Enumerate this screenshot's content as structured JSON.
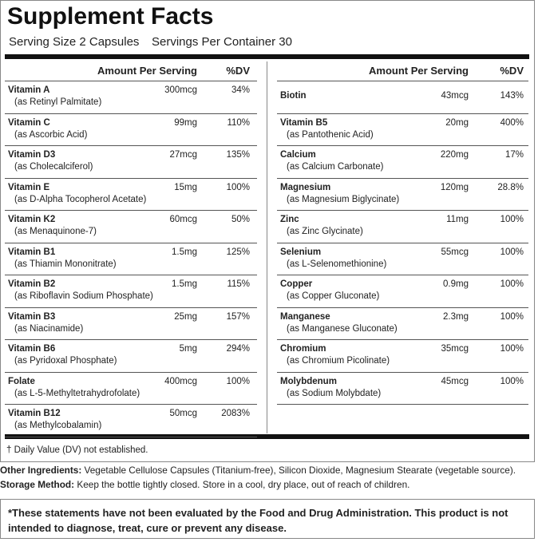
{
  "title": "Supplement Facts",
  "serving_size": "Serving Size 2 Capsules",
  "servings_per_container": "Servings Per Container 30",
  "table": {
    "headers": {
      "amount": "Amount Per Serving",
      "dv": "%DV"
    },
    "left": [
      {
        "name": "Vitamin A",
        "source": "(as Retinyl Palmitate)",
        "amount": "300mcg",
        "dv": "34%"
      },
      {
        "name": "Vitamin C",
        "source": "(as Ascorbic Acid)",
        "amount": "99mg",
        "dv": "110%"
      },
      {
        "name": "Vitamin D3",
        "source": "(as Cholecalciferol)",
        "amount": "27mcg",
        "dv": "135%"
      },
      {
        "name": "Vitamin E",
        "source": "(as D-Alpha Tocopherol Acetate)",
        "amount": "15mg",
        "dv": "100%"
      },
      {
        "name": "Vitamin K2",
        "source": "(as Menaquinone-7)",
        "amount": "60mcg",
        "dv": "50%"
      },
      {
        "name": "Vitamin B1",
        "source": "(as Thiamin Mononitrate)",
        "amount": "1.5mg",
        "dv": "125%"
      },
      {
        "name": "Vitamin B2",
        "source": "(as Riboflavin Sodium Phosphate)",
        "amount": "1.5mg",
        "dv": "115%"
      },
      {
        "name": "Vitamin B3",
        "source": "(as Niacinamide)",
        "amount": "25mg",
        "dv": "157%"
      },
      {
        "name": "Vitamin B6",
        "source": "(as Pyridoxal Phosphate)",
        "amount": "5mg",
        "dv": "294%"
      },
      {
        "name": "Folate",
        "source": "(as L-5-Methyltetrahydrofolate)",
        "amount": "400mcg",
        "dv": "100%"
      },
      {
        "name": "Vitamin B12",
        "source": "(as Methylcobalamin)",
        "amount": "50mcg",
        "dv": "2083%"
      }
    ],
    "right": [
      {
        "name": "Biotin",
        "amount": "43mcg",
        "dv": "143%"
      },
      {
        "name": "Vitamin B5",
        "source": "(as Pantothenic Acid)",
        "amount": "20mg",
        "dv": "400%"
      },
      {
        "name": "Calcium",
        "source": "(as Calcium Carbonate)",
        "amount": "220mg",
        "dv": "17%"
      },
      {
        "name": "Magnesium",
        "source": "(as Magnesium Biglycinate)",
        "amount": "120mg",
        "dv": "28.8%"
      },
      {
        "name": "Zinc",
        "source": "(as Zinc Glycinate)",
        "amount": "11mg",
        "dv": "100%"
      },
      {
        "name": "Selenium",
        "source": "(as L-Selenomethionine)",
        "amount": "55mcg",
        "dv": "100%"
      },
      {
        "name": "Copper",
        "source": "(as Copper Gluconate)",
        "amount": "0.9mg",
        "dv": "100%"
      },
      {
        "name": "Manganese",
        "source": "(as Manganese Gluconate)",
        "amount": "2.3mg",
        "dv": "100%"
      },
      {
        "name": "Chromium",
        "source": "(as Chromium Picolinate)",
        "amount": "35mcg",
        "dv": "100%"
      },
      {
        "name": "Molybdenum",
        "source": "(as Sodium Molybdate)",
        "amount": "45mcg",
        "dv": "100%"
      }
    ]
  },
  "footnote": "† Daily Value (DV) not established.",
  "other_ingredients": {
    "label": "Other Ingredients:",
    "text": "Vegetable Cellulose Capsules (Titanium-free), Silicon Dioxide, Magnesium Stearate (vegetable source)."
  },
  "storage": {
    "label": "Storage Method:",
    "text": "Keep the bottle tightly closed. Store in a cool, dry place, out of reach of children."
  },
  "disclaimer": "*These statements have not been evaluated by the Food and Drug Administration. This product is not intended to diagnose, treat, cure or prevent any disease."
}
